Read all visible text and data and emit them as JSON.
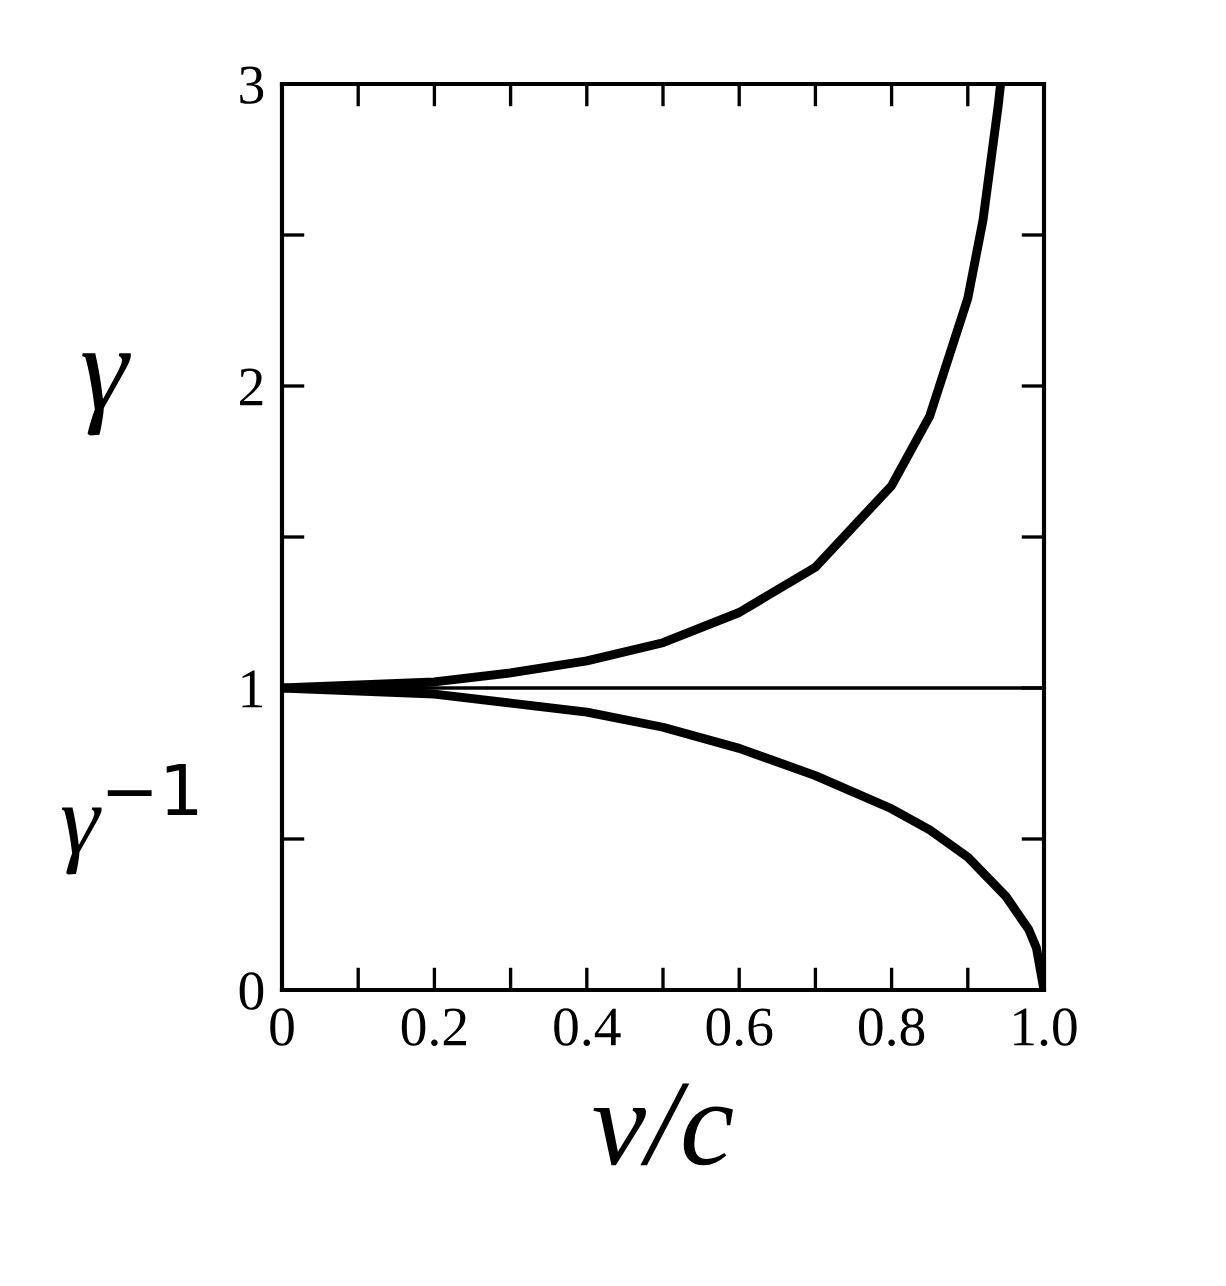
{
  "chart_data": {
    "type": "line",
    "xlabel": "v/c",
    "ylabel": "γ",
    "annotations": [
      "γ$^{−1}$"
    ],
    "xlim": [
      0,
      1
    ],
    "ylim": [
      0,
      3
    ],
    "xticks": [
      0,
      {
        "value": 0.1,
        "label": null
      },
      {
        "value": 0.2,
        "label": "0.2"
      },
      {
        "value": 0.3,
        "label": null
      },
      {
        "value": 0.4,
        "label": "0.4"
      },
      {
        "value": 0.5,
        "label": null
      },
      {
        "value": 0.6,
        "label": "0.6"
      },
      {
        "value": 0.7,
        "label": null
      },
      {
        "value": 0.8,
        "label": "0.8"
      },
      {
        "value": 0.9,
        "label": null
      },
      {
        "value": 1,
        "label": "1.0"
      }
    ],
    "yticks": [
      0,
      {
        "value": 0.5,
        "label": null
      },
      1,
      {
        "value": 1.5,
        "label": null
      },
      2,
      {
        "value": 2.5,
        "label": null
      },
      3
    ],
    "series": [
      {
        "color": "#000000",
        "x": [
          0,
          0.1,
          0.2,
          0.3,
          0.4,
          0.5,
          0.6,
          0.7,
          0.8,
          0.85,
          0.9,
          0.92,
          0.94,
          0.943
        ],
        "values": [
          1,
          1.01,
          1.02,
          1.05,
          1.09,
          1.15,
          1.25,
          1.4,
          1.67,
          1.9,
          2.29,
          2.55,
          2.93,
          3
        ]
      },
      {
        "color": "#000000",
        "x": [
          0,
          0.1,
          0.2,
          0.3,
          0.4,
          0.5,
          0.6,
          0.7,
          0.8,
          0.85,
          0.9,
          0.95,
          0.98,
          0.99,
          1
        ],
        "values": [
          1,
          0.99,
          0.98,
          0.95,
          0.92,
          0.87,
          0.8,
          0.71,
          0.6,
          0.53,
          0.44,
          0.31,
          0.2,
          0.14,
          0
        ]
      }
    ],
    "ref_lines": [
      {
        "axis": "y",
        "value": 1,
        "color": "#000000"
      }
    ],
    "grid": false,
    "legend": false,
    "marker": "none",
    "line_style": "solid"
  }
}
